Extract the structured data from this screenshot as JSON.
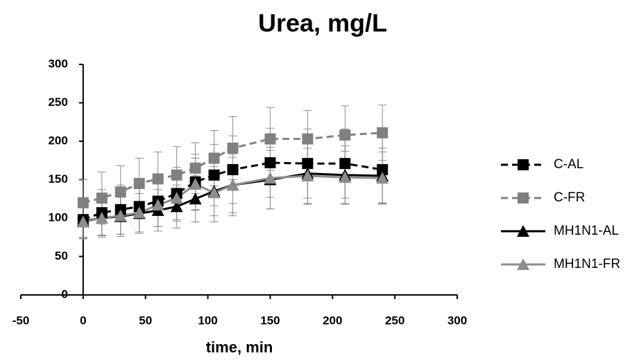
{
  "chart_data": {
    "type": "line",
    "title": "Urea, mg/L",
    "xlabel": "time, min",
    "x": [
      0,
      15,
      30,
      45,
      60,
      75,
      90,
      105,
      120,
      150,
      180,
      210,
      240
    ],
    "series": [
      {
        "name": "C-AL",
        "color": "#000000",
        "dash": true,
        "marker": "square",
        "values": [
          98,
          107,
          111,
          115,
          122,
          132,
          147,
          156,
          163,
          172,
          171,
          171,
          163
        ],
        "errors": [
          25,
          30,
          32,
          33,
          33,
          34,
          36,
          40,
          44,
          45,
          45,
          45,
          43
        ]
      },
      {
        "name": "C-FR",
        "color": "#808080",
        "dash": true,
        "marker": "square",
        "values": [
          120,
          126,
          134,
          145,
          151,
          156,
          165,
          178,
          191,
          203,
          203,
          208,
          211
        ],
        "errors": [
          30,
          34,
          34,
          33,
          35,
          37,
          33,
          36,
          41,
          41,
          37,
          38,
          36
        ]
      },
      {
        "name": "MH1N1-AL",
        "color": "#000000",
        "dash": false,
        "marker": "triangle",
        "values": [
          96,
          100,
          102,
          106,
          110,
          115,
          125,
          135,
          143,
          150,
          158,
          156,
          155
        ],
        "errors": [
          22,
          25,
          26,
          26,
          27,
          28,
          30,
          32,
          36,
          38,
          40,
          38,
          36
        ]
      },
      {
        "name": "MH1N1-FR",
        "color": "#8c8c8c",
        "dash": false,
        "marker": "triangle",
        "values": [
          95,
          100,
          103,
          107,
          117,
          126,
          144,
          133,
          143,
          152,
          155,
          153,
          152
        ],
        "errors": [
          20,
          22,
          24,
          25,
          28,
          30,
          34,
          38,
          40,
          40,
          36,
          34,
          34
        ]
      }
    ],
    "xlim": [
      -50,
      300
    ],
    "xticks": [
      -50,
      0,
      50,
      100,
      150,
      200,
      250,
      300
    ],
    "ylim": [
      0,
      300
    ],
    "yticks": [
      0,
      50,
      100,
      150,
      200,
      250,
      300
    ],
    "grid": false,
    "legend": "right"
  }
}
